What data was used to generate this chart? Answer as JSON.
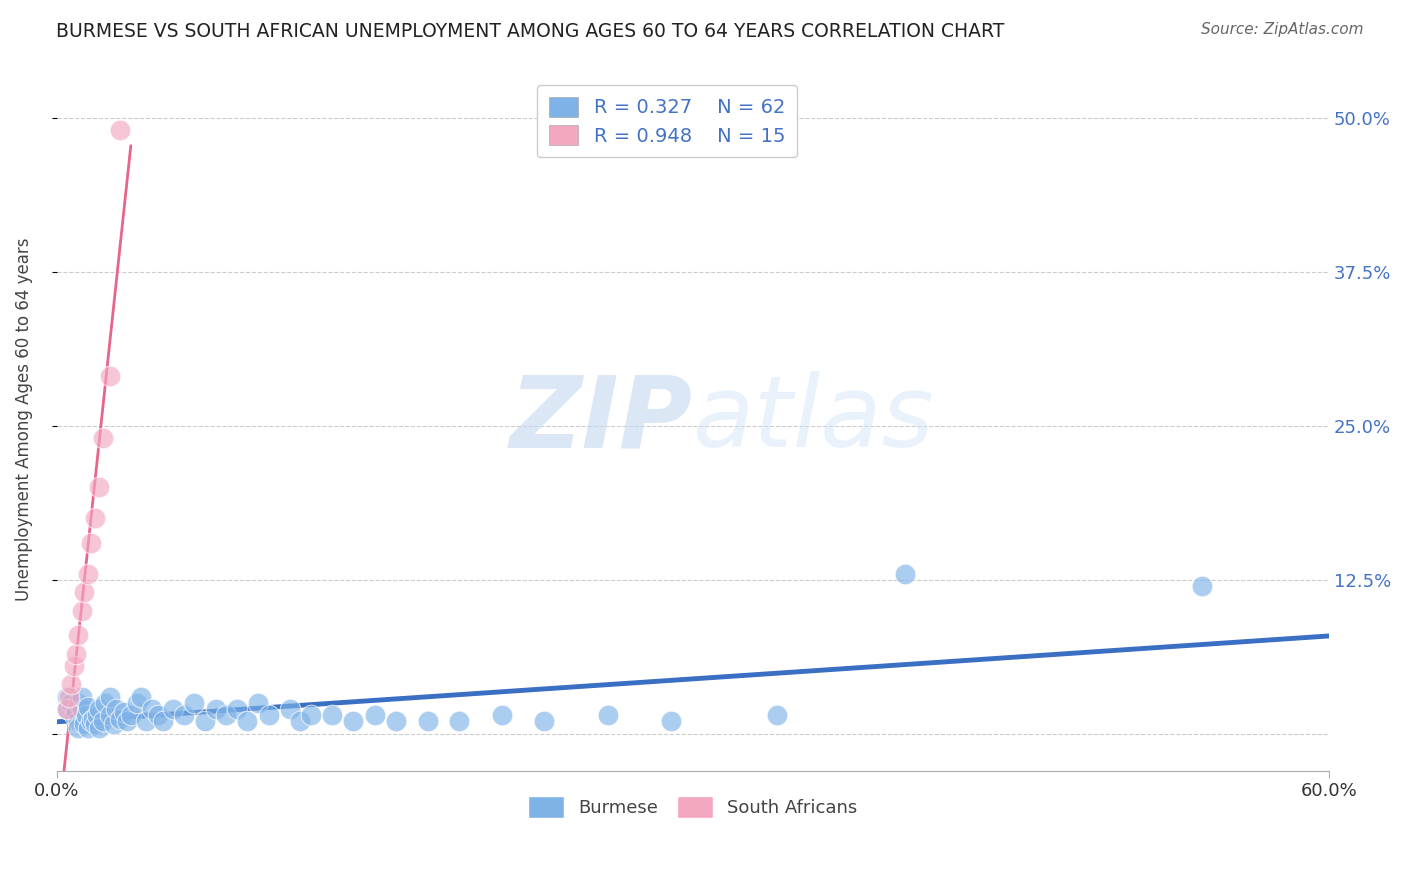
{
  "title": "BURMESE VS SOUTH AFRICAN UNEMPLOYMENT AMONG AGES 60 TO 64 YEARS CORRELATION CHART",
  "source": "Source: ZipAtlas.com",
  "ylabel": "Unemployment Among Ages 60 to 64 years",
  "xlim": [
    0.0,
    0.6
  ],
  "ylim": [
    -0.03,
    0.54
  ],
  "ytick_positions": [
    0.0,
    0.125,
    0.25,
    0.375,
    0.5
  ],
  "ytick_labels": [
    "",
    "12.5%",
    "25.0%",
    "37.5%",
    "50.0%"
  ],
  "burmese_R": 0.327,
  "burmese_N": 62,
  "sa_R": 0.948,
  "sa_N": 15,
  "burmese_color": "#7fb3e8",
  "sa_color": "#f4a8c0",
  "burmese_line_color": "#3a6fc4",
  "sa_line_color": "#e8658a",
  "tick_label_color": "#4472c4",
  "watermark_color": "#c8ddf5",
  "background_color": "#ffffff",
  "grid_color": "#cccccc",
  "burmese_x": [
    0.005,
    0.005,
    0.007,
    0.008,
    0.009,
    0.01,
    0.01,
    0.01,
    0.012,
    0.012,
    0.013,
    0.014,
    0.015,
    0.015,
    0.016,
    0.017,
    0.018,
    0.019,
    0.02,
    0.02,
    0.022,
    0.023,
    0.025,
    0.025,
    0.027,
    0.028,
    0.03,
    0.032,
    0.033,
    0.035,
    0.038,
    0.04,
    0.042,
    0.045,
    0.048,
    0.05,
    0.055,
    0.06,
    0.065,
    0.07,
    0.075,
    0.08,
    0.085,
    0.09,
    0.095,
    0.1,
    0.11,
    0.115,
    0.12,
    0.13,
    0.14,
    0.15,
    0.16,
    0.175,
    0.19,
    0.21,
    0.23,
    0.26,
    0.29,
    0.34,
    0.4,
    0.54
  ],
  "burmese_y": [
    0.03,
    0.02,
    0.025,
    0.015,
    0.018,
    0.025,
    0.01,
    0.005,
    0.02,
    0.03,
    0.008,
    0.015,
    0.005,
    0.022,
    0.01,
    0.012,
    0.008,
    0.015,
    0.02,
    0.005,
    0.01,
    0.025,
    0.015,
    0.03,
    0.008,
    0.02,
    0.012,
    0.018,
    0.01,
    0.015,
    0.025,
    0.03,
    0.01,
    0.02,
    0.015,
    0.01,
    0.02,
    0.015,
    0.025,
    0.01,
    0.02,
    0.015,
    0.02,
    0.01,
    0.025,
    0.015,
    0.02,
    0.01,
    0.015,
    0.015,
    0.01,
    0.015,
    0.01,
    0.01,
    0.01,
    0.015,
    0.01,
    0.015,
    0.01,
    0.015,
    0.13,
    0.12
  ],
  "sa_x": [
    0.005,
    0.006,
    0.007,
    0.008,
    0.009,
    0.01,
    0.012,
    0.013,
    0.015,
    0.016,
    0.018,
    0.02,
    0.022,
    0.025,
    0.03
  ],
  "sa_y": [
    0.02,
    0.03,
    0.04,
    0.055,
    0.065,
    0.08,
    0.1,
    0.115,
    0.13,
    0.155,
    0.175,
    0.2,
    0.24,
    0.29,
    0.49
  ]
}
